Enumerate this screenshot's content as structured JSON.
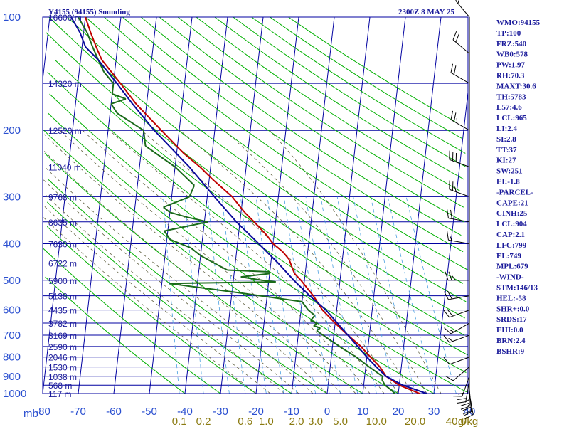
{
  "header": {
    "station": "Y4155 (94155) Sounding",
    "time": "2300Z  8 MAY 25"
  },
  "chart_data": {
    "type": "line",
    "title": "Y4155 (94155) Sounding",
    "subtitle": "2300Z  8 MAY 25",
    "xlabel": "",
    "ylabel": "mb",
    "y_scale": "log",
    "xlim": [
      -80,
      40
    ],
    "ylim": [
      1000,
      100
    ],
    "pressure_ticks": [
      100,
      200,
      300,
      400,
      500,
      600,
      700,
      800,
      900,
      1000
    ],
    "temperature_ticks": [
      -80,
      -70,
      -60,
      -50,
      -40,
      -30,
      -20,
      -10,
      0,
      10,
      20,
      30,
      40
    ],
    "axis_unit_label": "mb",
    "height_labels": [
      {
        "p": 100,
        "text": "16600 m"
      },
      {
        "p": 150,
        "text": "14320 m"
      },
      {
        "p": 200,
        "text": "12520 m"
      },
      {
        "p": 250,
        "text": "11040 m"
      },
      {
        "p": 300,
        "text": "9768 m"
      },
      {
        "p": 350,
        "text": "8635 m"
      },
      {
        "p": 400,
        "text": "7630 m"
      },
      {
        "p": 450,
        "text": "6722 m"
      },
      {
        "p": 500,
        "text": "5900 m"
      },
      {
        "p": 550,
        "text": "5138 m"
      },
      {
        "p": 600,
        "text": "4435 m"
      },
      {
        "p": 650,
        "text": "3782 m"
      },
      {
        "p": 700,
        "text": "3169 m"
      },
      {
        "p": 750,
        "text": "2590 m"
      },
      {
        "p": 800,
        "text": "2046 m"
      },
      {
        "p": 850,
        "text": "1530 m"
      },
      {
        "p": 900,
        "text": "1038 m"
      },
      {
        "p": 950,
        "text": "568 m"
      },
      {
        "p": 1000,
        "text": "117 m"
      }
    ],
    "mixing_ratio_labels": [
      {
        "w": 0.1,
        "text": "0.1"
      },
      {
        "w": 0.2,
        "text": "0.2"
      },
      {
        "w": 0.6,
        "text": "0.6"
      },
      {
        "w": 1.0,
        "text": "1.0"
      },
      {
        "w": 2.0,
        "text": "2.0"
      },
      {
        "w": 3.0,
        "text": "3.0"
      },
      {
        "w": 5.0,
        "text": "5.0"
      },
      {
        "w": 10.0,
        "text": "10.0"
      },
      {
        "w": 20.0,
        "text": "20.0"
      },
      {
        "w": 40.0,
        "text": "40.0"
      },
      {
        "w": 0,
        "text": "g/kg"
      }
    ],
    "series": [
      {
        "name": "",
        "color": "#c00000",
        "points": [
          [
            1000,
            26
          ],
          [
            950,
            20
          ],
          [
            900,
            16
          ],
          [
            850,
            14
          ],
          [
            800,
            11
          ],
          [
            750,
            8
          ],
          [
            700,
            4
          ],
          [
            650,
            0
          ],
          [
            600,
            -4
          ],
          [
            550,
            -7
          ],
          [
            500,
            -11
          ],
          [
            480,
            -13
          ],
          [
            460,
            -14
          ],
          [
            440,
            -15
          ],
          [
            420,
            -17
          ],
          [
            400,
            -20
          ],
          [
            380,
            -22
          ],
          [
            350,
            -26
          ],
          [
            330,
            -29
          ],
          [
            300,
            -33
          ],
          [
            270,
            -39
          ],
          [
            250,
            -43
          ],
          [
            230,
            -48
          ],
          [
            200,
            -55
          ],
          [
            170,
            -63
          ],
          [
            150,
            -68
          ],
          [
            130,
            -74
          ],
          [
            120,
            -76
          ],
          [
            110,
            -78
          ],
          [
            100,
            -80
          ]
        ]
      },
      {
        "name": "",
        "color": "#1a6b1a",
        "points": [
          [
            1000,
            19
          ],
          [
            980,
            18
          ],
          [
            950,
            16
          ],
          [
            920,
            15
          ],
          [
            900,
            15
          ],
          [
            850,
            11
          ],
          [
            800,
            7
          ],
          [
            760,
            3
          ],
          [
            720,
            -1
          ],
          [
            700,
            -3
          ],
          [
            690,
            -4
          ],
          [
            680,
            -5
          ],
          [
            670,
            -4
          ],
          [
            660,
            -6
          ],
          [
            650,
            -5
          ],
          [
            640,
            -7
          ],
          [
            620,
            -6
          ],
          [
            600,
            -8
          ],
          [
            570,
            -10
          ],
          [
            540,
            -28
          ],
          [
            510,
            -48
          ],
          [
            505,
            -18
          ],
          [
            500,
            -22
          ],
          [
            490,
            -28
          ],
          [
            480,
            -20
          ],
          [
            475,
            -20
          ],
          [
            470,
            -32
          ],
          [
            450,
            -36
          ],
          [
            430,
            -40
          ],
          [
            410,
            -43
          ],
          [
            390,
            -49
          ],
          [
            370,
            -51
          ],
          [
            350,
            -39
          ],
          [
            340,
            -45
          ],
          [
            330,
            -50
          ],
          [
            320,
            -52
          ],
          [
            300,
            -45
          ],
          [
            280,
            -44
          ],
          [
            250,
            -50
          ],
          [
            220,
            -59
          ],
          [
            200,
            -60
          ],
          [
            180,
            -68
          ],
          [
            170,
            -70
          ],
          [
            165,
            -66
          ],
          [
            160,
            -70
          ],
          [
            150,
            -70
          ],
          [
            140,
            -73
          ],
          [
            130,
            -75
          ],
          [
            120,
            -77
          ],
          [
            110,
            -79
          ],
          [
            100,
            -82
          ]
        ]
      },
      {
        "name": "",
        "color": "#0a0a9a",
        "points": [
          [
            1000,
            28
          ],
          [
            950,
            21
          ],
          [
            900,
            16
          ],
          [
            850,
            13
          ],
          [
            800,
            10
          ],
          [
            700,
            4
          ],
          [
            600,
            -3
          ],
          [
            550,
            -8
          ],
          [
            500,
            -13
          ],
          [
            450,
            -18
          ],
          [
            400,
            -24
          ],
          [
            350,
            -31
          ],
          [
            300,
            -38
          ],
          [
            250,
            -46
          ],
          [
            200,
            -57
          ],
          [
            170,
            -64
          ],
          [
            150,
            -69
          ],
          [
            130,
            -75
          ],
          [
            120,
            -79
          ],
          [
            110,
            -81
          ],
          [
            100,
            -84
          ]
        ]
      }
    ],
    "indices": [
      "WMO:94155",
      "TP:100",
      "FRZ:540",
      "WB0:578",
      "PW:1.97",
      "RH:70.3",
      "MAXT:30.6",
      "TH:5783",
      "L57:4.6",
      "LCL:965",
      "LI:2.4",
      "SI:2.8",
      "TT:37",
      "KI:27",
      "SW:251",
      "EI:-1.8",
      "-PARCEL-",
      "CAPE:21",
      "CINH:25",
      "LCL:904",
      "CAP:2.1",
      "LFC:799",
      "EL:749",
      "MPL:679",
      "-WIND-",
      "STM:146/13",
      "HEL:-58",
      "SHR+:0.0",
      "SRDS:17",
      "EHI:0.0",
      "BRN:2.4",
      "BSHR:9"
    ],
    "colors": {
      "isobar": "#0000a0",
      "isotherm": "#0000a0",
      "dry_adiabat": "#00b000",
      "moist_adiabat": "#606040",
      "mixing_ratio": "#4aa0e0",
      "wind_barb": "#000000"
    },
    "wind_barbs": [
      {
        "p": 1000,
        "dir": 170,
        "spd": 20
      },
      {
        "p": 975,
        "dir": 175,
        "spd": 25
      },
      {
        "p": 950,
        "dir": 180,
        "spd": 25
      },
      {
        "p": 925,
        "dir": 190,
        "spd": 20
      },
      {
        "p": 900,
        "dir": 200,
        "spd": 15
      },
      {
        "p": 850,
        "dir": 230,
        "spd": 10
      },
      {
        "p": 800,
        "dir": 250,
        "spd": 10
      },
      {
        "p": 700,
        "dir": 250,
        "spd": 15
      },
      {
        "p": 650,
        "dir": 240,
        "spd": 15
      },
      {
        "p": 600,
        "dir": 250,
        "spd": 20
      },
      {
        "p": 550,
        "dir": 260,
        "spd": 20
      },
      {
        "p": 500,
        "dir": 270,
        "spd": 25
      },
      {
        "p": 400,
        "dir": 280,
        "spd": 15
      },
      {
        "p": 350,
        "dir": 280,
        "spd": 20
      },
      {
        "p": 300,
        "dir": 290,
        "spd": 25
      },
      {
        "p": 250,
        "dir": 290,
        "spd": 30
      },
      {
        "p": 200,
        "dir": 300,
        "spd": 25
      },
      {
        "p": 150,
        "dir": 300,
        "spd": 20
      },
      {
        "p": 125,
        "dir": 310,
        "spd": 20
      },
      {
        "p": 100,
        "dir": 320,
        "spd": 15
      }
    ]
  }
}
